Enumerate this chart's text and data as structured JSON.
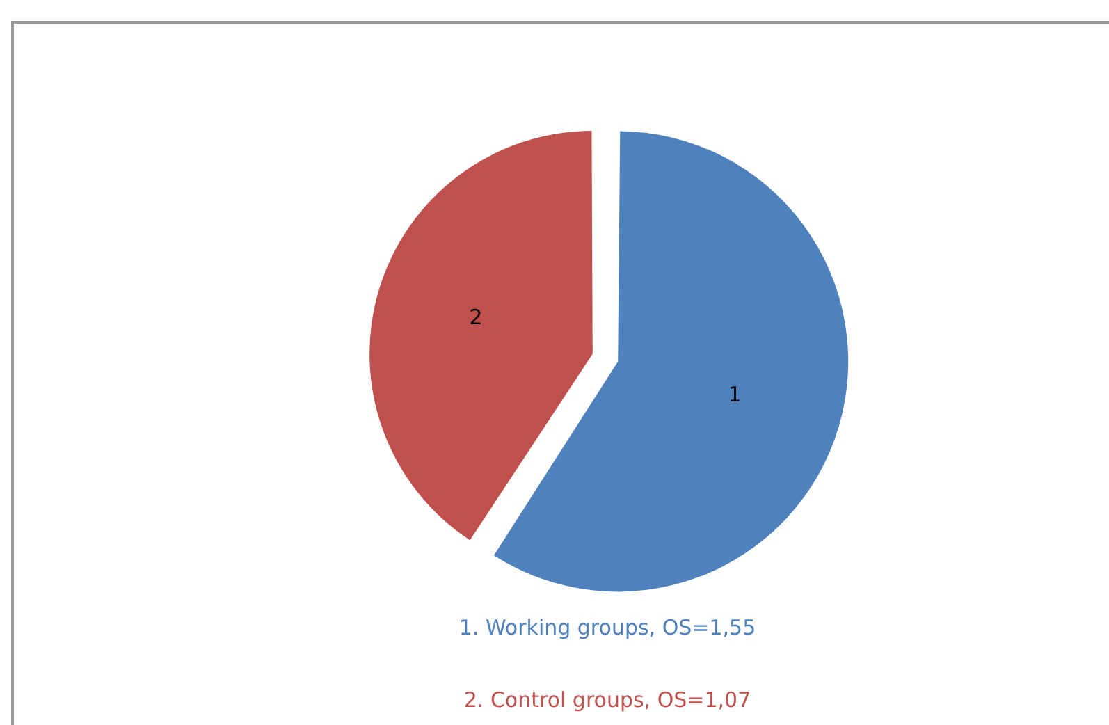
{
  "chart_data": {
    "type": "pie",
    "categories": [
      "1",
      "2"
    ],
    "values": [
      59.2,
      40.8
    ],
    "colors": [
      "#4f81bd",
      "#c0504d"
    ],
    "annotations": [
      "1.  Working groups, OS=1,55",
      "2.  Control groups, OS=1,07"
    ],
    "legend": false
  }
}
